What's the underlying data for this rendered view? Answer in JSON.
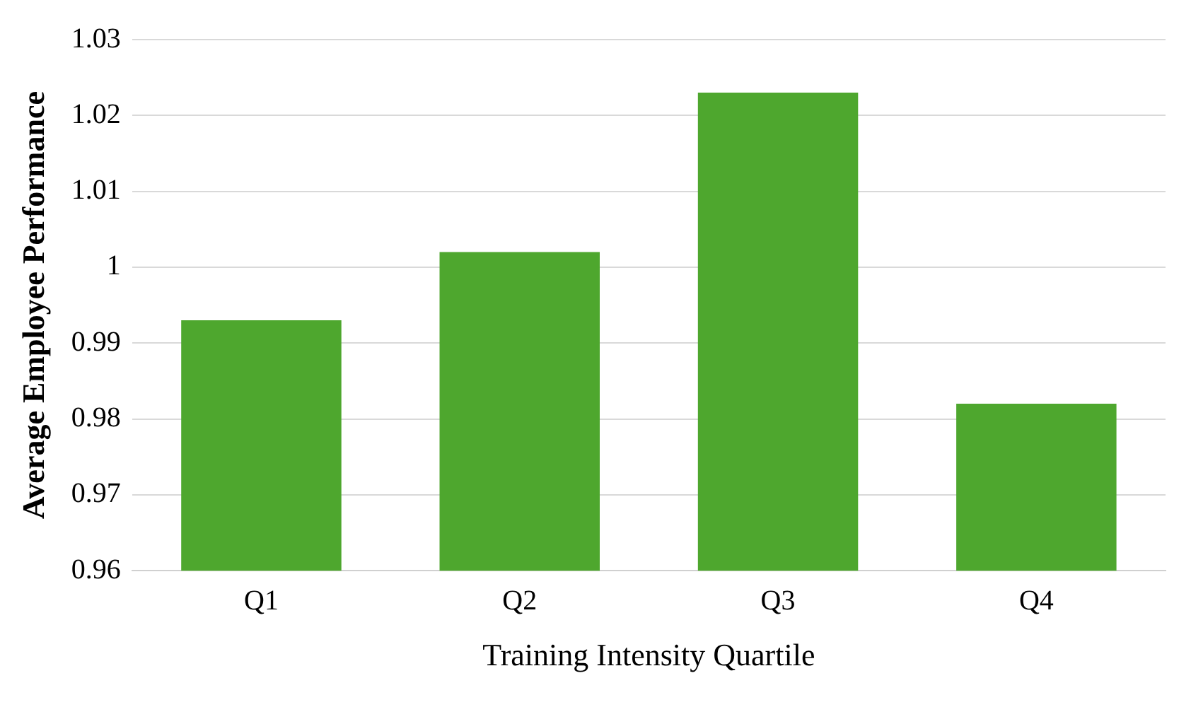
{
  "chart_data": {
    "type": "bar",
    "xlabel": "Training Intensity Quartile",
    "ylabel": "Average Employee Performance",
    "categories": [
      "Q1",
      "Q2",
      "Q3",
      "Q4"
    ],
    "values": [
      0.993,
      1.002,
      1.023,
      0.982
    ],
    "color": "#4ea72e",
    "ylim": [
      0.96,
      1.03
    ],
    "yticks": [
      0.96,
      0.97,
      0.98,
      0.99,
      1,
      1.01,
      1.02,
      1.03
    ],
    "grid": "y",
    "legend": false
  }
}
